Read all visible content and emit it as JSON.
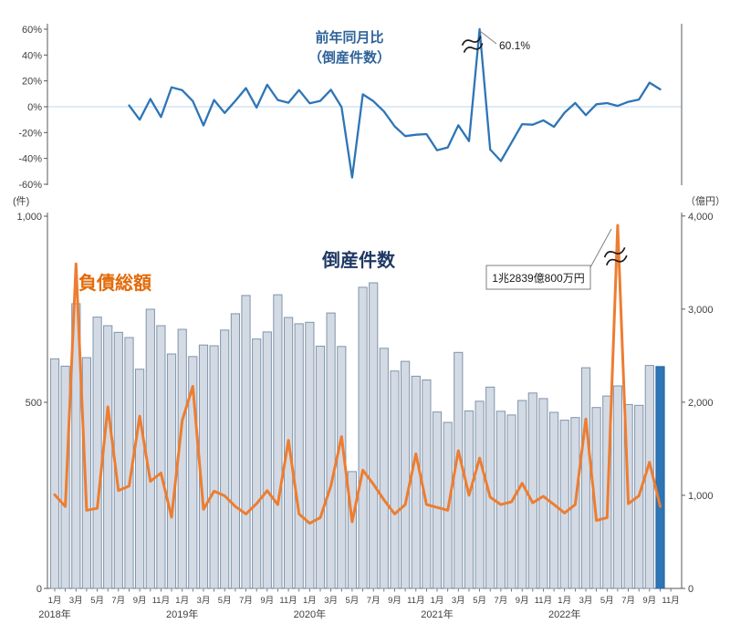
{
  "titles": {
    "top_chart_label_line1": "前年同月比",
    "top_chart_label_line2": "（倒産件数）",
    "bars_title": "倒産件数",
    "liabilities_label": "負債総額"
  },
  "annotations": {
    "yoy_peak_label": "60.1%",
    "liabilities_peak_label": "1兆2839億800万円"
  },
  "axes": {
    "top_left_ticks": [
      "60%",
      "40%",
      "20%",
      "0%",
      "-20%",
      "-40%",
      "-60%"
    ],
    "top_left_tick_values": [
      60,
      40,
      20,
      0,
      -20,
      -40,
      -60
    ],
    "bottom_left_unit": "(件)",
    "bottom_left_ticks": [
      "1,000",
      "500",
      "0"
    ],
    "bottom_left_tick_values": [
      1000,
      500,
      0
    ],
    "bottom_right_unit": "（億円）",
    "bottom_right_ticks": [
      "4,000",
      "3,000",
      "2,000",
      "1,000",
      "0"
    ],
    "bottom_right_tick_values": [
      4000,
      3000,
      2000,
      1000,
      0
    ],
    "years": [
      "2018年",
      "2019年",
      "2020年",
      "2021年",
      "2022年"
    ],
    "month_labels": [
      "1月",
      "3月",
      "5月",
      "7月",
      "9月",
      "11月"
    ]
  },
  "colors": {
    "yoy_line": "#2e75b6",
    "liabilities_line": "#ed7d31",
    "bar_fill": "#d3dae4",
    "bar_border": "#7f94ab",
    "highlight_bar_fill": "#2e75b6",
    "highlight_bar_border": "#2563a0",
    "zero_gridline": "#c9dff0",
    "axis": "#595959",
    "text": "#404040",
    "bars_title_color": "#1f3864",
    "liabilities_label_color": "#e26b0a",
    "top_label_color": "#2e6399",
    "annotation_box_border": "#7f7f7f",
    "leader_line": "#808080"
  },
  "chart_data": [
    {
      "type": "line",
      "title": "前年同月比（倒産件数）",
      "unit": "%",
      "ylim": [
        -60,
        60
      ],
      "grid": "zero-line only",
      "legend_position": "none (inline label)",
      "x": [
        "2018-08",
        "2018-09",
        "2018-10",
        "2018-11",
        "2018-12",
        "2019-01",
        "2019-02",
        "2019-03",
        "2019-04",
        "2019-05",
        "2019-06",
        "2019-07",
        "2019-08",
        "2019-09",
        "2019-10",
        "2019-11",
        "2019-12",
        "2020-01",
        "2020-02",
        "2020-03",
        "2020-04",
        "2020-05",
        "2020-06",
        "2020-07",
        "2020-08",
        "2020-09",
        "2020-10",
        "2020-11",
        "2020-12",
        "2021-01",
        "2021-02",
        "2021-03",
        "2021-04",
        "2021-05",
        "2021-06",
        "2021-07",
        "2021-08",
        "2021-09",
        "2021-10",
        "2021-11",
        "2021-12",
        "2022-01",
        "2022-02",
        "2022-03",
        "2022-04",
        "2022-05",
        "2022-06",
        "2022-07",
        "2022-08",
        "2022-09",
        "2022-10"
      ],
      "values": [
        1,
        -10,
        6,
        -8,
        15,
        12.8,
        4.4,
        -14.5,
        5.2,
        -4.8,
        4.5,
        14.4,
        -0.6,
        17.0,
        5.2,
        3.1,
        12.9,
        2.7,
        4.5,
        13.1,
        -0.3,
        -54.8,
        9.6,
        4.3,
        -3.7,
        -15.2,
        -22.7,
        -21.7,
        -21.2,
        -33.7,
        -31.5,
        -14.3,
        -26.6,
        60.1,
        -33.1,
        -42.0,
        -27.8,
        -13.5,
        -13.9,
        -10.5,
        -15.5,
        -4.6,
        2.9,
        -6.5,
        1.9,
        2.8,
        0.6,
        3.8,
        5.6,
        18.6,
        13.5
      ],
      "annotations": [
        {
          "x": "2021-05",
          "value": 60.1,
          "label": "60.1%",
          "axis_break_on_spike": true
        }
      ]
    },
    {
      "type": "bar+line",
      "title": "倒産件数（棒・左軸）と負債総額（線・右軸）",
      "ylim_left": [
        0,
        1000
      ],
      "ylim_right": [
        0,
        4000
      ],
      "unit_left": "件",
      "unit_right": "億円",
      "grid": "off",
      "categories": [
        "2018-01",
        "2018-02",
        "2018-03",
        "2018-04",
        "2018-05",
        "2018-06",
        "2018-07",
        "2018-08",
        "2018-09",
        "2018-10",
        "2018-11",
        "2018-12",
        "2019-01",
        "2019-02",
        "2019-03",
        "2019-04",
        "2019-05",
        "2019-06",
        "2019-07",
        "2019-08",
        "2019-09",
        "2019-10",
        "2019-11",
        "2019-12",
        "2020-01",
        "2020-02",
        "2020-03",
        "2020-04",
        "2020-05",
        "2020-06",
        "2020-07",
        "2020-08",
        "2020-09",
        "2020-10",
        "2020-11",
        "2020-12",
        "2021-01",
        "2021-02",
        "2021-03",
        "2021-04",
        "2021-05",
        "2021-06",
        "2021-07",
        "2021-08",
        "2021-09",
        "2021-10",
        "2021-11",
        "2021-12",
        "2022-01",
        "2022-02",
        "2022-03",
        "2022-04",
        "2022-05",
        "2022-06",
        "2022-07",
        "2022-08",
        "2022-09",
        "2022-10"
      ],
      "series": [
        {
          "name": "倒産件数",
          "type": "bar",
          "axis": "left",
          "highlight_last": true,
          "values": [
            617,
            597,
            765,
            620,
            729,
            706,
            688,
            674,
            589,
            750,
            706,
            630,
            696,
            623,
            654,
            652,
            694,
            738,
            787,
            670,
            689,
            789,
            728,
            711,
            715,
            651,
            740,
            650,
            314,
            809,
            821,
            645,
            584,
            610,
            570,
            560,
            474,
            446,
            634,
            477,
            503,
            541,
            476,
            466,
            505,
            525,
            510,
            473,
            452,
            459,
            593,
            486,
            517,
            544,
            494,
            492,
            599,
            596
          ]
        },
        {
          "name": "負債総額",
          "type": "line",
          "axis": "right",
          "display_cap": 3900,
          "values": [
            1005,
            880,
            3485,
            840,
            860,
            1950,
            1050,
            1100,
            1850,
            1150,
            1240,
            765,
            1805,
            2170,
            850,
            1045,
            995,
            880,
            800,
            910,
            1050,
            900,
            1590,
            800,
            700,
            760,
            1100,
            1630,
            715,
            1270,
            1120,
            950,
            800,
            900,
            1445,
            900,
            870,
            840,
            1480,
            1000,
            1400,
            980,
            900,
            930,
            1130,
            920,
            990,
            900,
            810,
            900,
            1820,
            730,
            760,
            12839.08,
            910,
            995,
            1355,
            880
          ]
        }
      ],
      "annotations": [
        {
          "x": "2022-06",
          "value": 12839.08,
          "label": "1兆2839億800万円",
          "axis_break_on_spike": true
        }
      ]
    }
  ]
}
